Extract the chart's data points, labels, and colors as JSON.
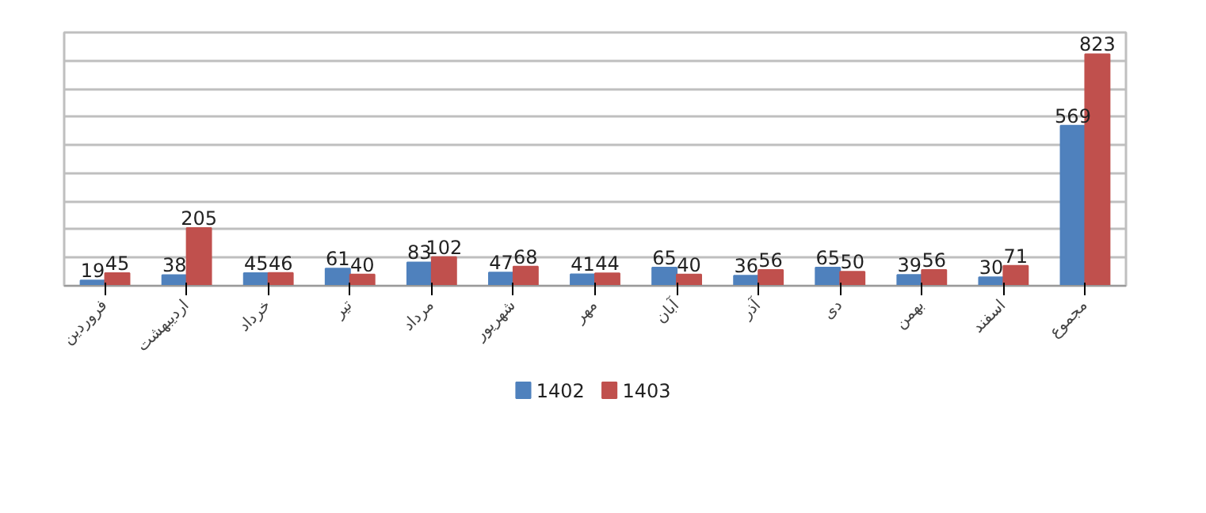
{
  "chart_data": {
    "type": "bar",
    "categories": [
      "فروردین",
      "اردیبهشت",
      "خرداد",
      "تیر",
      "مرداد",
      "شهریور",
      "مهر",
      "آبان",
      "آذر",
      "دی",
      "بهمن",
      "اسفند",
      "مجموع"
    ],
    "series": [
      {
        "name": "1402",
        "color": "#4f81bd",
        "values": [
          19,
          38,
          45,
          61,
          83,
          47,
          41,
          65,
          36,
          65,
          39,
          30,
          569
        ]
      },
      {
        "name": "1403",
        "color": "#c0504d",
        "values": [
          45,
          205,
          46,
          40,
          102,
          68,
          44,
          40,
          56,
          50,
          56,
          71,
          823
        ]
      }
    ],
    "ylim": [
      0,
      900
    ],
    "yticks": [
      {
        "value": 0,
        "label": null
      },
      {
        "value": 100,
        "label": null
      },
      {
        "value": 200,
        "label": null
      },
      {
        "value": 300,
        "label": null
      },
      {
        "value": 400,
        "label": null
      },
      {
        "value": 500,
        "label": null
      },
      {
        "value": 600,
        "label": null
      },
      {
        "value": 700,
        "label": null
      },
      {
        "value": 800,
        "label": null
      },
      {
        "value": 900,
        "label": null
      }
    ],
    "tick_labels": "x",
    "grid": "y",
    "legend": "bottom",
    "data_labels": true
  }
}
